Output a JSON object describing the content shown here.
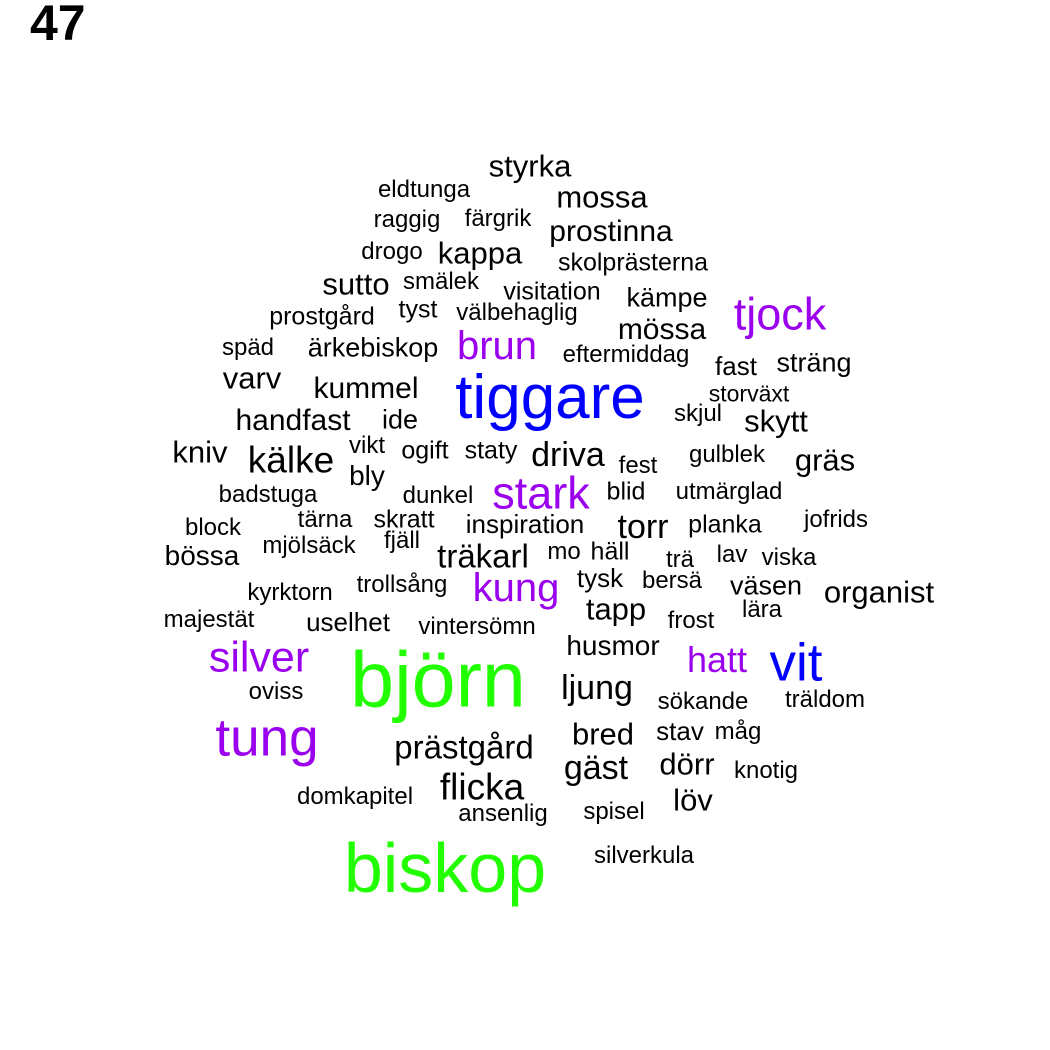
{
  "panel_label": "47",
  "colors": {
    "black": "#000000",
    "purple": "#9a00ee",
    "blue": "#0000ff",
    "green": "#22ff00"
  },
  "words": [
    {
      "text": "styrka",
      "color": "black"
    },
    {
      "text": "eldtunga",
      "color": "black"
    },
    {
      "text": "mossa",
      "color": "black"
    },
    {
      "text": "raggig",
      "color": "black"
    },
    {
      "text": "färgrik",
      "color": "black"
    },
    {
      "text": "prostinna",
      "color": "black"
    },
    {
      "text": "drogo",
      "color": "black"
    },
    {
      "text": "kappa",
      "color": "black"
    },
    {
      "text": "skolprästerna",
      "color": "black"
    },
    {
      "text": "sutto",
      "color": "black"
    },
    {
      "text": "smälek",
      "color": "black"
    },
    {
      "text": "visitation",
      "color": "black"
    },
    {
      "text": "kämpe",
      "color": "black"
    },
    {
      "text": "tjock",
      "color": "purple"
    },
    {
      "text": "prostgård",
      "color": "black"
    },
    {
      "text": "tyst",
      "color": "black"
    },
    {
      "text": "välbehaglig",
      "color": "black"
    },
    {
      "text": "mössa",
      "color": "black"
    },
    {
      "text": "späd",
      "color": "black"
    },
    {
      "text": "ärkebiskop",
      "color": "black"
    },
    {
      "text": "brun",
      "color": "purple"
    },
    {
      "text": "eftermiddag",
      "color": "black"
    },
    {
      "text": "fast",
      "color": "black"
    },
    {
      "text": "sträng",
      "color": "black"
    },
    {
      "text": "varv",
      "color": "black"
    },
    {
      "text": "kummel",
      "color": "black"
    },
    {
      "text": "tiggare",
      "color": "blue"
    },
    {
      "text": "storväxt",
      "color": "black"
    },
    {
      "text": "handfast",
      "color": "black"
    },
    {
      "text": "ide",
      "color": "black"
    },
    {
      "text": "skjul",
      "color": "black"
    },
    {
      "text": "skytt",
      "color": "black"
    },
    {
      "text": "kniv",
      "color": "black"
    },
    {
      "text": "kälke",
      "color": "black"
    },
    {
      "text": "vikt",
      "color": "black"
    },
    {
      "text": "ogift",
      "color": "black"
    },
    {
      "text": "staty",
      "color": "black"
    },
    {
      "text": "driva",
      "color": "black"
    },
    {
      "text": "gulblek",
      "color": "black"
    },
    {
      "text": "gräs",
      "color": "black"
    },
    {
      "text": "fest",
      "color": "black"
    },
    {
      "text": "bly",
      "color": "black"
    },
    {
      "text": "stark",
      "color": "purple"
    },
    {
      "text": "badstuga",
      "color": "black"
    },
    {
      "text": "dunkel",
      "color": "black"
    },
    {
      "text": "blid",
      "color": "black"
    },
    {
      "text": "utmärglad",
      "color": "black"
    },
    {
      "text": "tärna",
      "color": "black"
    },
    {
      "text": "skratt",
      "color": "black"
    },
    {
      "text": "jofrids",
      "color": "black"
    },
    {
      "text": "block",
      "color": "black"
    },
    {
      "text": "inspiration",
      "color": "black"
    },
    {
      "text": "torr",
      "color": "black"
    },
    {
      "text": "planka",
      "color": "black"
    },
    {
      "text": "mjölsäck",
      "color": "black"
    },
    {
      "text": "fjäll",
      "color": "black"
    },
    {
      "text": "bössa",
      "color": "black"
    },
    {
      "text": "träkarl",
      "color": "black"
    },
    {
      "text": "mo",
      "color": "black"
    },
    {
      "text": "häll",
      "color": "black"
    },
    {
      "text": "trä",
      "color": "black"
    },
    {
      "text": "lav",
      "color": "black"
    },
    {
      "text": "viska",
      "color": "black"
    },
    {
      "text": "tysk",
      "color": "black"
    },
    {
      "text": "kung",
      "color": "purple"
    },
    {
      "text": "trollsång",
      "color": "black"
    },
    {
      "text": "bersä",
      "color": "black"
    },
    {
      "text": "kyrktorn",
      "color": "black"
    },
    {
      "text": "väsen",
      "color": "black"
    },
    {
      "text": "organist",
      "color": "black"
    },
    {
      "text": "tapp",
      "color": "black"
    },
    {
      "text": "lära",
      "color": "black"
    },
    {
      "text": "majestät",
      "color": "black"
    },
    {
      "text": "uselhet",
      "color": "black"
    },
    {
      "text": "vintersömn",
      "color": "black"
    },
    {
      "text": "frost",
      "color": "black"
    },
    {
      "text": "husmor",
      "color": "black"
    },
    {
      "text": "silver",
      "color": "purple"
    },
    {
      "text": "hatt",
      "color": "purple"
    },
    {
      "text": "vit",
      "color": "blue"
    },
    {
      "text": "björn",
      "color": "green"
    },
    {
      "text": "ljung",
      "color": "black"
    },
    {
      "text": "oviss",
      "color": "black"
    },
    {
      "text": "sökande",
      "color": "black"
    },
    {
      "text": "träldom",
      "color": "black"
    },
    {
      "text": "tung",
      "color": "purple"
    },
    {
      "text": "bred",
      "color": "black"
    },
    {
      "text": "stav",
      "color": "black"
    },
    {
      "text": "måg",
      "color": "black"
    },
    {
      "text": "prästgård",
      "color": "black"
    },
    {
      "text": "gäst",
      "color": "black"
    },
    {
      "text": "dörr",
      "color": "black"
    },
    {
      "text": "knotig",
      "color": "black"
    },
    {
      "text": "flicka",
      "color": "black"
    },
    {
      "text": "domkapitel",
      "color": "black"
    },
    {
      "text": "löv",
      "color": "black"
    },
    {
      "text": "ansenlig",
      "color": "black"
    },
    {
      "text": "spisel",
      "color": "black"
    },
    {
      "text": "biskop",
      "color": "green"
    },
    {
      "text": "silverkula",
      "color": "black"
    }
  ]
}
